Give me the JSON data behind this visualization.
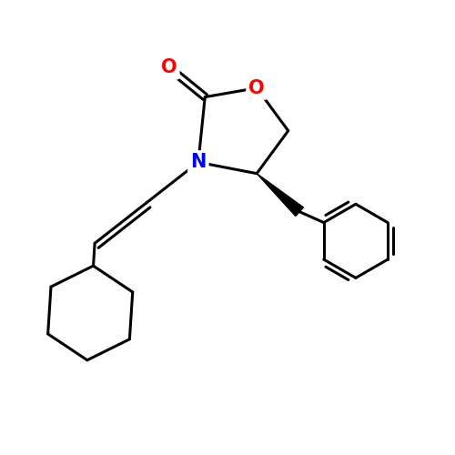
{
  "bg_color": "#ffffff",
  "atom_colors": {
    "O": "#ff0000",
    "N": "#0000ff",
    "C": "#000000"
  },
  "bond_color": "#000000",
  "bond_width": 2.2,
  "font_size_atom": 15,
  "figsize": [
    5.0,
    5.0
  ],
  "dpi": 100,
  "xlim": [
    0,
    10
  ],
  "ylim": [
    0,
    10
  ]
}
